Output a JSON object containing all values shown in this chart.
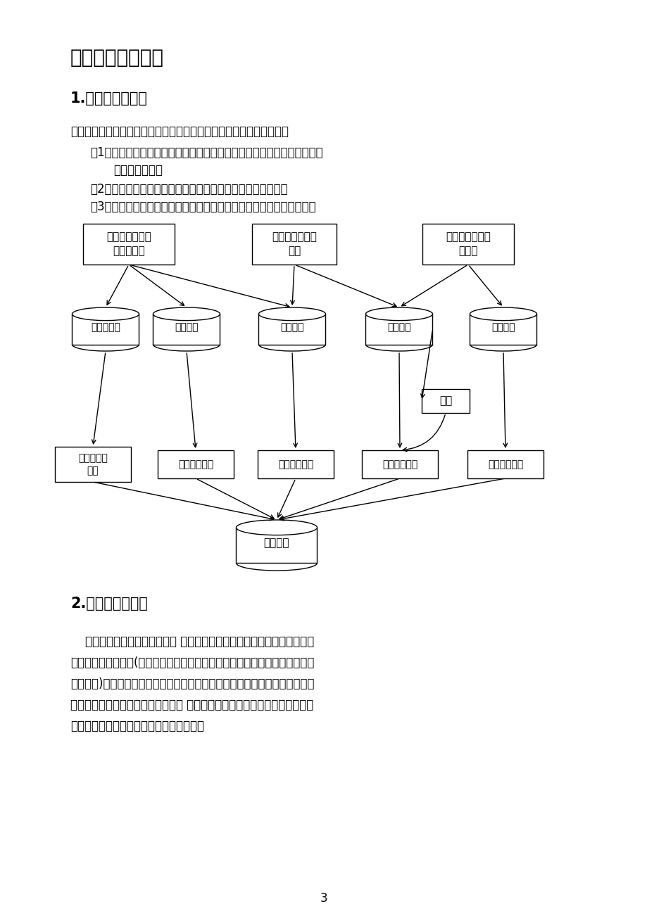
{
  "title1": "一、系统总体设计",
  "subtitle1": "1.系统流程图设计",
  "para1": "订餐系统主要要求对用户和订餐情况进行添加、删除、修改等。其中：",
  "item1a": "（1）管理员对管理员账号、员工账号、客户账号和餐馆信息进行管理，操",
  "item1b": "作导入数据库；",
  "item2": "（2）员工对员工账号和订餐情况进行管理，操作导入数据库；",
  "item3": "（3）客户进行注册客户账号、更新账号、订餐操作，操作导入数据库。",
  "subtitle2": "2.功能结构图设计",
  "para2_lines": [
    "    本订餐系统主要包括三大模块 第一部分是管理员模块，在这个模块中又分",
    "成用户账号管理模块(包括管理员账号管理模块、员工账号管理模块、客户账号",
    "管理模块)和餐馆信息管理模块；第二部分是员工模块，在这个模块中又分成员",
    "工账号管理模块和订餐情况管理模块 第三部分是客户模块，在这个模块中又分",
    "成客户账号管理模块和订餐情况管理模块。"
  ],
  "page_num": "3",
  "bg_color": "#ffffff",
  "text_color": "#000000"
}
